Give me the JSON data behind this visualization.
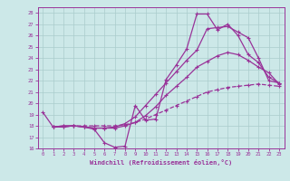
{
  "xlabel": "Windchill (Refroidissement éolien,°C)",
  "ylabel": "",
  "bg_color": "#cce8e8",
  "grid_color": "#aacccc",
  "line_color": "#993399",
  "xlim": [
    -0.5,
    23.5
  ],
  "ylim": [
    16,
    28.5
  ],
  "xticks": [
    0,
    1,
    2,
    3,
    4,
    5,
    6,
    7,
    8,
    9,
    10,
    11,
    12,
    13,
    14,
    15,
    16,
    17,
    18,
    19,
    20,
    21,
    22,
    23
  ],
  "yticks": [
    16,
    17,
    18,
    19,
    20,
    21,
    22,
    23,
    24,
    25,
    26,
    27,
    28
  ],
  "line1_x": [
    0,
    1,
    2,
    3,
    4,
    5,
    6,
    7,
    8,
    9,
    10,
    11,
    12,
    13,
    14,
    15,
    16,
    17,
    18,
    19,
    20,
    21,
    22,
    23
  ],
  "line1_y": [
    19.2,
    17.9,
    17.9,
    18.0,
    17.9,
    17.7,
    16.5,
    16.1,
    16.2,
    19.8,
    18.5,
    18.6,
    22.1,
    23.4,
    24.8,
    27.9,
    27.9,
    26.5,
    27.0,
    26.0,
    24.3,
    23.6,
    22.3,
    21.8
  ],
  "line2_x": [
    1,
    2,
    3,
    4,
    5,
    6,
    7,
    8,
    9,
    10,
    11,
    12,
    13,
    14,
    15,
    16,
    17,
    18,
    19,
    20,
    21,
    22,
    23
  ],
  "line2_y": [
    17.9,
    18.0,
    18.0,
    17.9,
    17.8,
    17.8,
    17.9,
    18.2,
    18.8,
    19.8,
    20.8,
    21.8,
    22.8,
    23.8,
    24.7,
    26.6,
    26.7,
    26.8,
    26.3,
    25.8,
    24.0,
    22.0,
    21.8
  ],
  "line3_x": [
    1,
    2,
    3,
    4,
    5,
    6,
    7,
    8,
    9,
    10,
    11,
    12,
    13,
    14,
    15,
    16,
    17,
    18,
    19,
    20,
    21,
    22,
    23
  ],
  "line3_y": [
    17.9,
    18.0,
    18.0,
    17.9,
    17.8,
    17.8,
    17.8,
    18.0,
    18.3,
    18.9,
    19.7,
    20.7,
    21.5,
    22.3,
    23.2,
    23.7,
    24.2,
    24.5,
    24.3,
    23.8,
    23.2,
    22.7,
    21.7
  ],
  "line4_x": [
    1,
    2,
    3,
    4,
    5,
    6,
    7,
    8,
    9,
    10,
    11,
    12,
    13,
    14,
    15,
    16,
    17,
    18,
    19,
    20,
    21,
    22,
    23
  ],
  "line4_y": [
    17.9,
    17.9,
    18.0,
    18.0,
    18.0,
    18.0,
    18.0,
    18.1,
    18.3,
    18.6,
    19.0,
    19.4,
    19.8,
    20.2,
    20.6,
    21.0,
    21.2,
    21.4,
    21.5,
    21.6,
    21.7,
    21.6,
    21.5
  ]
}
